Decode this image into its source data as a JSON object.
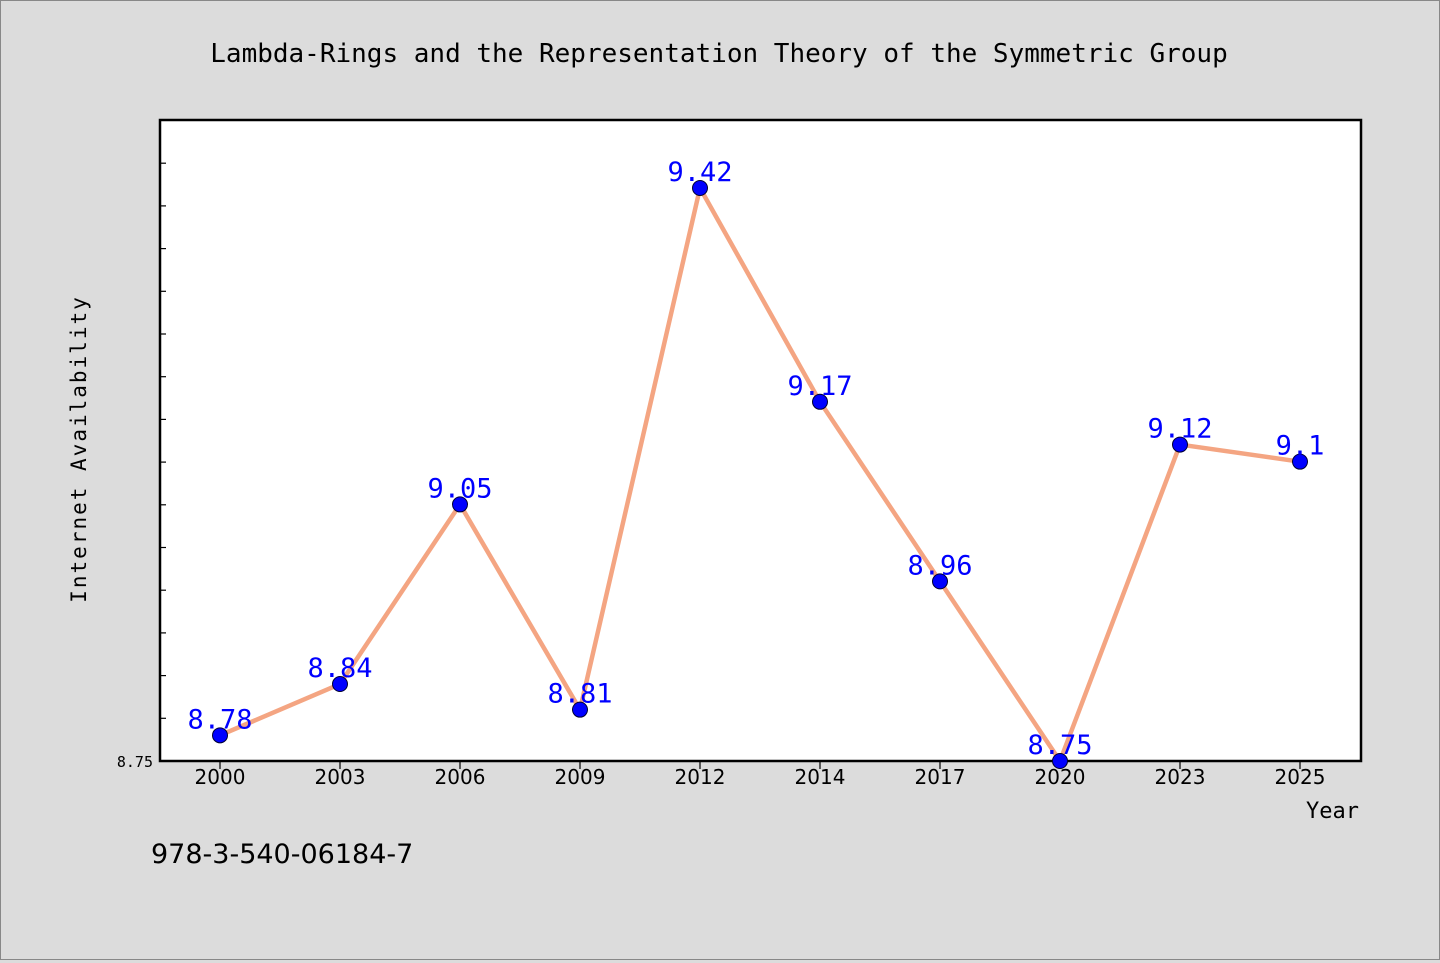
{
  "chart_data": {
    "type": "line",
    "title": "Lambda-Rings and the Representation Theory of the Symmetric Group",
    "xlabel": "Year",
    "ylabel": "Internet Availability",
    "categories": [
      "2000",
      "2003",
      "2006",
      "2009",
      "2012",
      "2014",
      "2017",
      "2020",
      "2023",
      "2025"
    ],
    "values": [
      8.78,
      8.84,
      9.05,
      8.81,
      9.42,
      9.17,
      8.96,
      8.75,
      9.12,
      9.1
    ],
    "data_labels": [
      "8.78",
      "8.84",
      "9.05",
      "8.81",
      "9.42",
      "9.17",
      "8.96",
      "8.75",
      "9.12",
      "9.1"
    ],
    "ylim": [
      8.75,
      9.5
    ],
    "y_tick_labels": [
      "8.75"
    ],
    "grid": false,
    "line_color": "#f4a582",
    "marker_color": "#0000ff",
    "label_color": "#0000ff"
  },
  "footer": {
    "code": "978-3-540-06184-7"
  }
}
